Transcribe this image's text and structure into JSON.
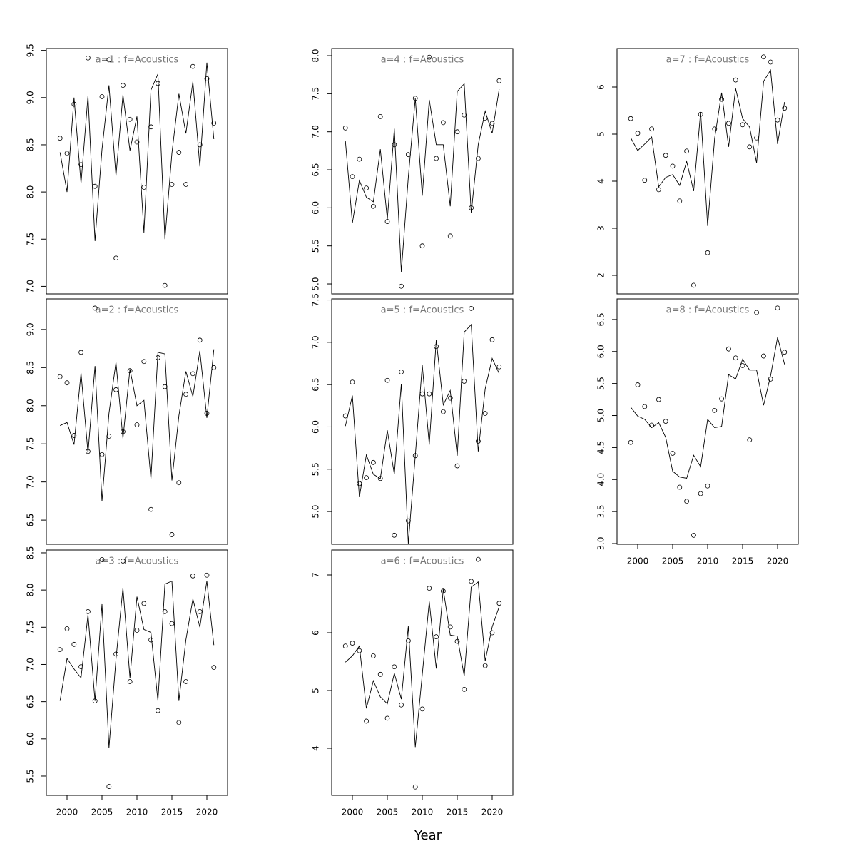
{
  "chart_data": [
    {
      "type": "scatter-line",
      "title": "a=1  :  f=Acoustics",
      "x": [
        1999,
        2000,
        2001,
        2002,
        2003,
        2004,
        2005,
        2006,
        2007,
        2008,
        2009,
        2010,
        2011,
        2012,
        2013,
        2014,
        2015,
        2016,
        2017,
        2018,
        2019,
        2020,
        2021
      ],
      "xlim": [
        1997.04,
        2022.96
      ],
      "ylim": [
        6.92,
        9.52
      ],
      "yticks": [
        {
          "value": 7,
          "label": "7.0"
        },
        7.5,
        {
          "value": 8,
          "label": "8.0"
        },
        8.5,
        {
          "value": 9,
          "label": "9.0"
        },
        9.5
      ],
      "series": [
        {
          "style": "points",
          "color": "#000000",
          "values": [
            8.57,
            8.41,
            8.93,
            8.29,
            9.42,
            8.06,
            9.01,
            9.4,
            7.3,
            9.13,
            8.77,
            8.53,
            8.05,
            8.69,
            9.15,
            7.01,
            8.08,
            8.42,
            8.08,
            9.33,
            8.5,
            9.2,
            8.73
          ]
        },
        {
          "style": "line",
          "color": "#000000",
          "values": [
            8.42,
            8.0,
            9.0,
            8.09,
            9.02,
            7.48,
            8.45,
            9.13,
            8.17,
            9.03,
            8.44,
            8.8,
            7.57,
            9.08,
            9.25,
            7.5,
            8.41,
            9.04,
            8.62,
            9.17,
            8.27,
            9.37,
            8.56
          ]
        }
      ]
    },
    {
      "type": "scatter-line",
      "title": "a=2  :  f=Acoustics",
      "x": [
        1999,
        2000,
        2001,
        2002,
        2003,
        2004,
        2005,
        2006,
        2007,
        2008,
        2009,
        2010,
        2011,
        2012,
        2013,
        2014,
        2015,
        2016,
        2017,
        2018,
        2019,
        2020,
        2021
      ],
      "xlim": [
        1997.04,
        2022.96
      ],
      "ylim": [
        6.183,
        9.401
      ],
      "yticks": [
        6.5,
        {
          "value": 7,
          "label": "7.0"
        },
        7.5,
        {
          "value": 8,
          "label": "8.0"
        },
        8.5,
        {
          "value": 9,
          "label": "9.0"
        }
      ],
      "series": [
        {
          "style": "points",
          "color": "#000000",
          "values": [
            8.38,
            8.3,
            7.61,
            8.7,
            7.4,
            9.28,
            7.36,
            7.6,
            8.21,
            7.66,
            8.46,
            7.75,
            8.58,
            6.64,
            8.63,
            8.25,
            6.31,
            6.99,
            8.15,
            8.42,
            8.86,
            7.9,
            8.5
          ]
        },
        {
          "style": "line",
          "color": "#000000",
          "values": [
            7.74,
            7.78,
            7.49,
            8.43,
            7.38,
            8.52,
            6.75,
            7.9,
            8.57,
            7.57,
            8.48,
            8.0,
            8.07,
            7.04,
            8.7,
            8.68,
            7.02,
            7.87,
            8.45,
            8.12,
            8.72,
            7.84,
            8.74
          ]
        }
      ]
    },
    {
      "type": "scatter-line",
      "title": "a=3  :  f=Acoustics",
      "x": [
        1999,
        2000,
        2001,
        2002,
        2003,
        2004,
        2005,
        2006,
        2007,
        2008,
        2009,
        2010,
        2011,
        2012,
        2013,
        2014,
        2015,
        2016,
        2017,
        2018,
        2019,
        2020,
        2021
      ],
      "xlim": [
        1997.04,
        2022.96
      ],
      "ylim": [
        5.241,
        8.538
      ],
      "xticks": [
        2000,
        2005,
        2010,
        2015,
        2020
      ],
      "yticks": [
        5.5,
        {
          "value": 6,
          "label": "6.0"
        },
        6.5,
        {
          "value": 7,
          "label": "7.0"
        },
        7.5,
        {
          "value": 8,
          "label": "8.0"
        },
        8.5
      ],
      "series": [
        {
          "style": "points",
          "color": "#000000",
          "values": [
            7.2,
            7.48,
            7.27,
            6.97,
            7.71,
            6.51,
            8.41,
            5.36,
            7.14,
            8.39,
            6.77,
            7.46,
            7.82,
            7.33,
            6.38,
            7.71,
            7.55,
            6.22,
            6.77,
            8.19,
            7.71,
            8.2,
            6.96
          ]
        },
        {
          "style": "line",
          "color": "#000000",
          "values": [
            6.51,
            7.08,
            6.94,
            6.82,
            7.67,
            6.51,
            7.81,
            5.88,
            7.07,
            8.03,
            6.82,
            7.91,
            7.47,
            7.43,
            6.51,
            8.08,
            8.12,
            6.51,
            7.33,
            7.88,
            7.5,
            8.12,
            7.26
          ]
        }
      ]
    },
    {
      "type": "scatter-line",
      "title": "a=4  :  f=Acoustics",
      "x": [
        1999,
        2000,
        2001,
        2002,
        2003,
        2004,
        2005,
        2006,
        2007,
        2008,
        2009,
        2010,
        2011,
        2012,
        2013,
        2014,
        2015,
        2016,
        2017,
        2018,
        2019,
        2020,
        2021
      ],
      "xlim": [
        1997.04,
        2022.96
      ],
      "ylim": [
        4.869,
        8.094
      ],
      "yticks": [
        {
          "value": 5,
          "label": "5.0"
        },
        5.5,
        {
          "value": 6,
          "label": "6.0"
        },
        6.5,
        {
          "value": 7,
          "label": "7.0"
        },
        7.5,
        {
          "value": 8,
          "label": "8.0"
        }
      ],
      "series": [
        {
          "style": "points",
          "color": "#000000",
          "values": [
            7.05,
            6.41,
            6.64,
            6.26,
            6.02,
            7.2,
            5.82,
            6.83,
            4.97,
            6.7,
            7.44,
            5.5,
            7.98,
            6.65,
            7.12,
            5.63,
            7.0,
            7.22,
            6.0,
            6.65,
            7.18,
            7.11,
            7.67
          ]
        },
        {
          "style": "line",
          "color": "#000000",
          "values": [
            6.88,
            5.8,
            6.36,
            6.14,
            6.08,
            6.77,
            5.85,
            7.04,
            5.16,
            6.4,
            7.44,
            6.16,
            7.42,
            6.83,
            6.83,
            6.02,
            7.53,
            7.63,
            5.93,
            6.83,
            7.27,
            6.98,
            7.56
          ]
        }
      ]
    },
    {
      "type": "scatter-line",
      "title": "a=5  :  f=Acoustics",
      "x": [
        1999,
        2000,
        2001,
        2002,
        2003,
        2004,
        2005,
        2006,
        2007,
        2008,
        2009,
        2010,
        2011,
        2012,
        2013,
        2014,
        2015,
        2016,
        2017,
        2018,
        2019,
        2020,
        2021
      ],
      "xlim": [
        1997.04,
        2022.96
      ],
      "ylim": [
        4.613,
        7.513
      ],
      "yticks": [
        {
          "value": 5,
          "label": "5.0"
        },
        5.5,
        {
          "value": 6,
          "label": "6.0"
        },
        6.5,
        {
          "value": 7,
          "label": "7.0"
        },
        7.5
      ],
      "series": [
        {
          "style": "points",
          "color": "#000000",
          "values": [
            6.13,
            6.53,
            5.33,
            5.4,
            5.58,
            5.39,
            6.55,
            4.72,
            6.65,
            4.89,
            5.66,
            6.39,
            6.39,
            6.95,
            6.18,
            6.34,
            5.54,
            6.54,
            7.4,
            5.83,
            6.16,
            7.03,
            6.71
          ]
        },
        {
          "style": "line",
          "color": "#000000",
          "values": [
            6.01,
            6.37,
            5.17,
            5.67,
            5.44,
            5.39,
            5.96,
            5.44,
            6.51,
            4.62,
            5.66,
            6.73,
            5.79,
            7.03,
            6.26,
            6.43,
            5.66,
            7.12,
            7.21,
            5.71,
            6.45,
            6.81,
            6.63
          ]
        }
      ]
    },
    {
      "type": "scatter-line",
      "title": "a=6  :  f=Acoustics",
      "xlabel": "Year",
      "x": [
        1999,
        2000,
        2001,
        2002,
        2003,
        2004,
        2005,
        2006,
        2007,
        2008,
        2009,
        2010,
        2011,
        2012,
        2013,
        2014,
        2015,
        2016,
        2017,
        2018,
        2019,
        2020,
        2021
      ],
      "xlim": [
        1997.04,
        2022.96
      ],
      "ylim": [
        3.185,
        7.432
      ],
      "xticks": [
        2000,
        2005,
        2010,
        2015,
        2020
      ],
      "yticks": [
        4,
        5,
        6,
        7
      ],
      "series": [
        {
          "style": "points",
          "color": "#000000",
          "values": [
            5.77,
            5.82,
            5.69,
            4.47,
            5.6,
            5.28,
            4.52,
            5.41,
            4.75,
            5.86,
            3.33,
            4.68,
            6.77,
            5.93,
            6.72,
            6.1,
            5.85,
            5.02,
            6.89,
            7.27,
            5.43,
            6.0,
            6.51
          ]
        },
        {
          "style": "line",
          "color": "#000000",
          "values": [
            5.49,
            5.6,
            5.77,
            4.69,
            5.17,
            4.89,
            4.77,
            5.3,
            4.85,
            6.11,
            4.02,
            5.28,
            6.54,
            5.38,
            6.75,
            5.96,
            5.94,
            5.25,
            6.79,
            6.88,
            5.51,
            6.1,
            6.45
          ]
        }
      ]
    },
    {
      "type": "scatter-line",
      "title": "a=7  :  f=Acoustics",
      "x": [
        1999,
        2000,
        2001,
        2002,
        2003,
        2004,
        2005,
        2006,
        2007,
        2008,
        2009,
        2010,
        2011,
        2012,
        2013,
        2014,
        2015,
        2016,
        2017,
        2018,
        2019,
        2020,
        2021
      ],
      "xlim": [
        1997.04,
        2022.96
      ],
      "ylim": [
        1.606,
        6.818
      ],
      "yticks": [
        2,
        3,
        4,
        5,
        6
      ],
      "series": [
        {
          "style": "points",
          "color": "#000000",
          "values": [
            5.33,
            5.02,
            4.02,
            5.11,
            3.82,
            4.55,
            4.32,
            3.58,
            4.64,
            1.79,
            5.42,
            2.48,
            5.11,
            5.74,
            5.23,
            6.15,
            5.2,
            4.73,
            4.92,
            6.64,
            6.53,
            5.3,
            5.55
          ]
        },
        {
          "style": "line",
          "color": "#000000",
          "values": [
            4.92,
            4.65,
            4.79,
            4.94,
            3.88,
            4.08,
            4.14,
            3.91,
            4.42,
            3.79,
            5.47,
            3.05,
            4.91,
            5.88,
            4.73,
            5.97,
            5.33,
            5.15,
            4.39,
            6.12,
            6.36,
            4.79,
            5.68
          ]
        }
      ]
    },
    {
      "type": "scatter-line",
      "title": "a=8  :  f=Acoustics",
      "x": [
        1999,
        2000,
        2001,
        2002,
        2003,
        2004,
        2005,
        2006,
        2007,
        2008,
        2009,
        2010,
        2011,
        2012,
        2013,
        2014,
        2015,
        2016,
        2017,
        2018,
        2019,
        2020,
        2021
      ],
      "xlim": [
        1997.04,
        2022.96
      ],
      "ylim": [
        2.989,
        6.822
      ],
      "xticks": [
        2000,
        2005,
        2010,
        2015,
        2020
      ],
      "yticks": [
        {
          "value": 3,
          "label": "3.0"
        },
        3.5,
        {
          "value": 4,
          "label": "4.0"
        },
        4.5,
        {
          "value": 5,
          "label": "5.0"
        },
        5.5,
        {
          "value": 6,
          "label": "6.0"
        },
        6.5
      ],
      "series": [
        {
          "style": "points",
          "color": "#000000",
          "values": [
            4.58,
            5.48,
            5.14,
            4.85,
            5.25,
            4.91,
            4.41,
            3.88,
            3.66,
            3.13,
            3.78,
            3.9,
            5.08,
            5.26,
            6.04,
            5.9,
            5.78,
            4.62,
            6.61,
            5.93,
            5.57,
            6.68,
            5.99
          ]
        },
        {
          "style": "line",
          "color": "#000000",
          "values": [
            5.13,
            4.99,
            4.94,
            4.81,
            4.89,
            4.66,
            4.13,
            4.04,
            4.02,
            4.38,
            4.2,
            4.94,
            4.81,
            4.83,
            5.64,
            5.57,
            5.88,
            5.71,
            5.71,
            5.16,
            5.62,
            6.22,
            5.8
          ]
        }
      ]
    }
  ]
}
